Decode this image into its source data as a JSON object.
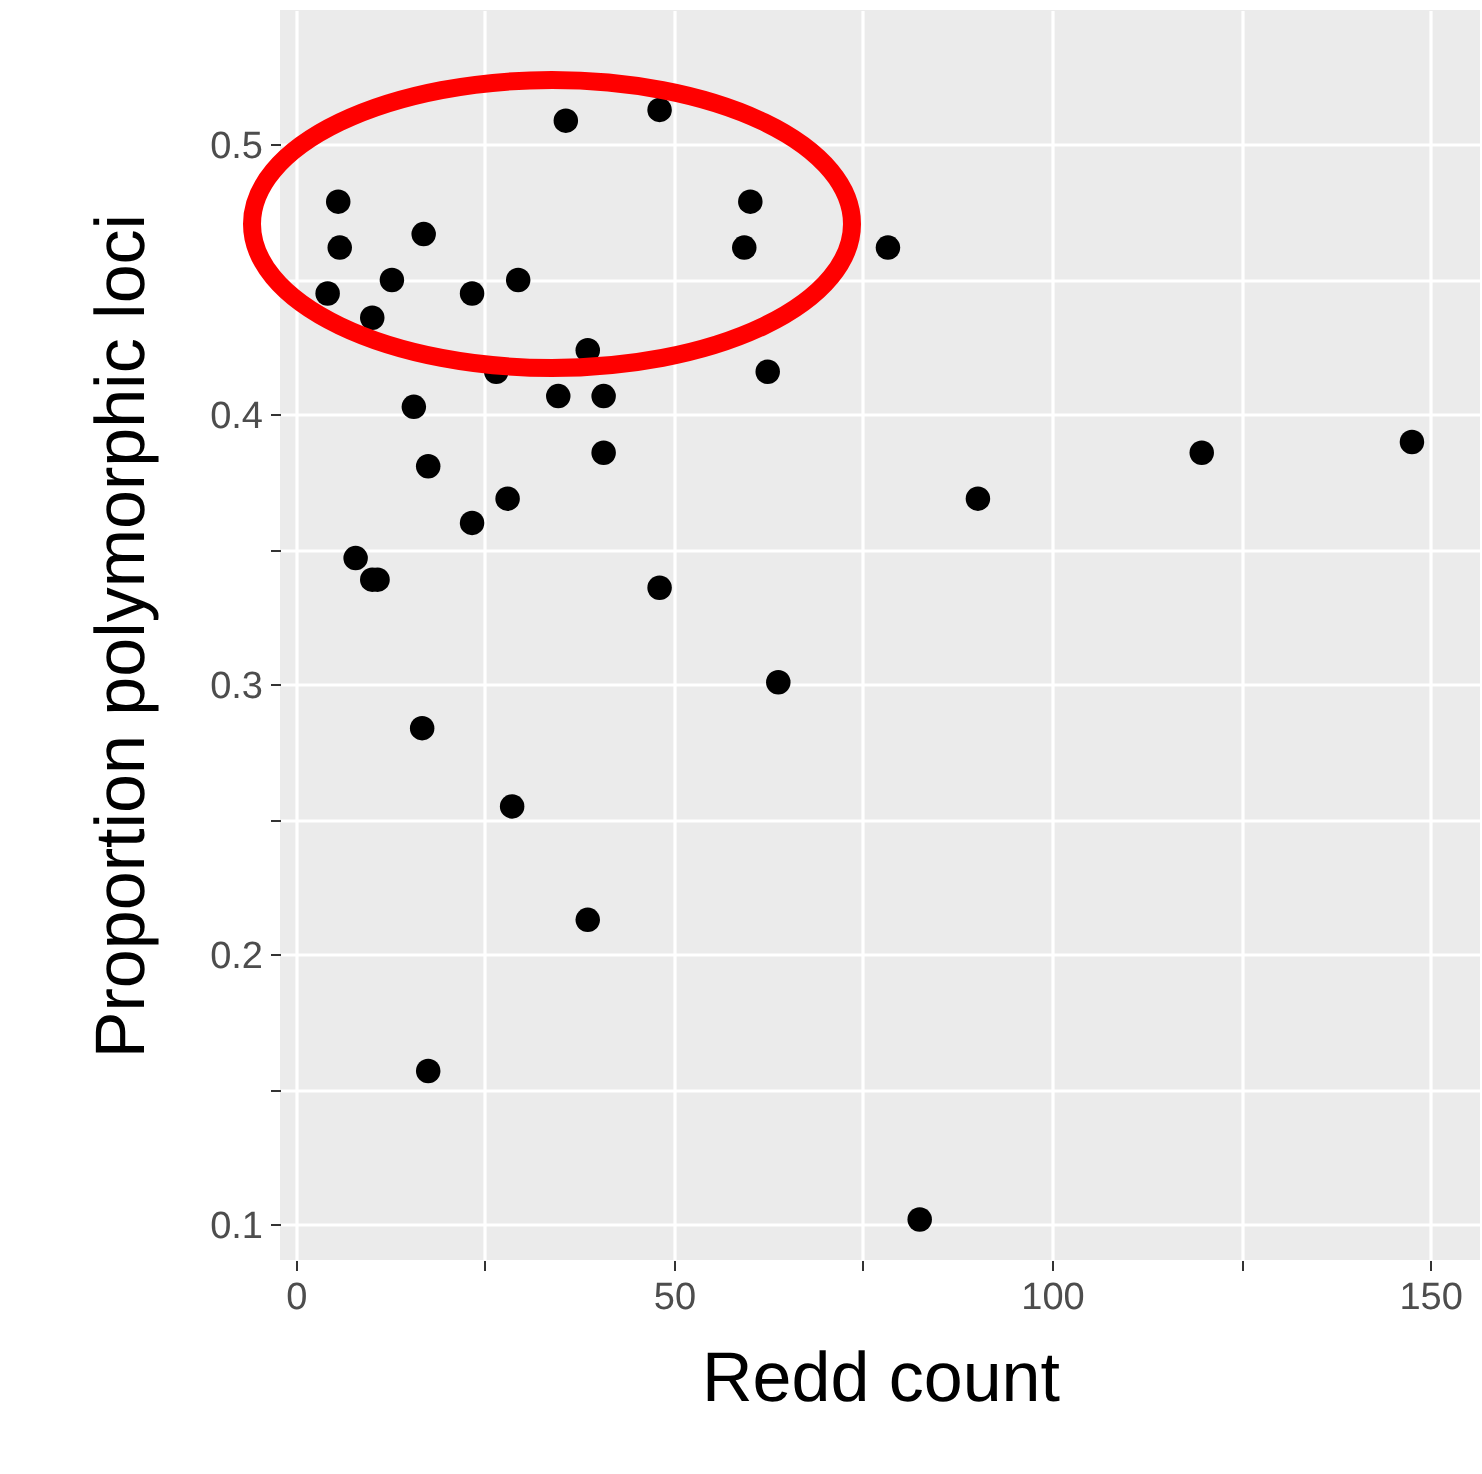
{
  "chart_data": {
    "type": "scatter",
    "xlabel": "Redd count",
    "ylabel": "Proportion polymorphic loci",
    "x": [
      4.2,
      5.6,
      5.8,
      7.9,
      10.1,
      10.8,
      10.1,
      12.7,
      15.6,
      16.9,
      16.7,
      17.5,
      17.5,
      23.3,
      23.3,
      26.5,
      28.0,
      28.6,
      29.4,
      34.7,
      35.7,
      38.6,
      38.6,
      40.7,
      40.7,
      48.1,
      48.1,
      59.3,
      60.1,
      62.4,
      63.8,
      78.3,
      82.5,
      90.2,
      119.8,
      147.6
    ],
    "series": [
      {
        "color": "#000000",
        "values": [
          0.445,
          0.479,
          0.462,
          0.347,
          0.339,
          0.339,
          0.436,
          0.45,
          0.403,
          0.467,
          0.284,
          0.381,
          0.157,
          0.445,
          0.36,
          0.416,
          0.369,
          0.255,
          0.45,
          0.407,
          0.509,
          0.424,
          0.213,
          0.407,
          0.386,
          0.513,
          0.336,
          0.462,
          0.479,
          0.416,
          0.301,
          0.462,
          0.102,
          0.369,
          0.386,
          0.39
        ]
      }
    ],
    "xlim": [
      -2.1,
      156.6
    ],
    "ylim": [
      0.087,
      0.55
    ],
    "xticks": [
      0,
      {
        "value": 25,
        "label": null
      },
      50,
      {
        "value": 75,
        "label": null
      },
      100,
      {
        "value": 125,
        "label": null
      },
      150
    ],
    "yticks": [
      {
        "value": 0.1,
        "label": "0.1"
      },
      {
        "value": 0.15,
        "label": null
      },
      {
        "value": 0.2,
        "label": "0.2"
      },
      {
        "value": 0.25,
        "label": null
      },
      {
        "value": 0.3,
        "label": "0.3"
      },
      {
        "value": 0.35,
        "label": null
      },
      {
        "value": 0.4,
        "label": "0.4"
      },
      {
        "value": 0.45,
        "label": null
      },
      {
        "value": 0.5,
        "label": "0.5"
      }
    ],
    "grid": true,
    "marker": "circle"
  }
}
